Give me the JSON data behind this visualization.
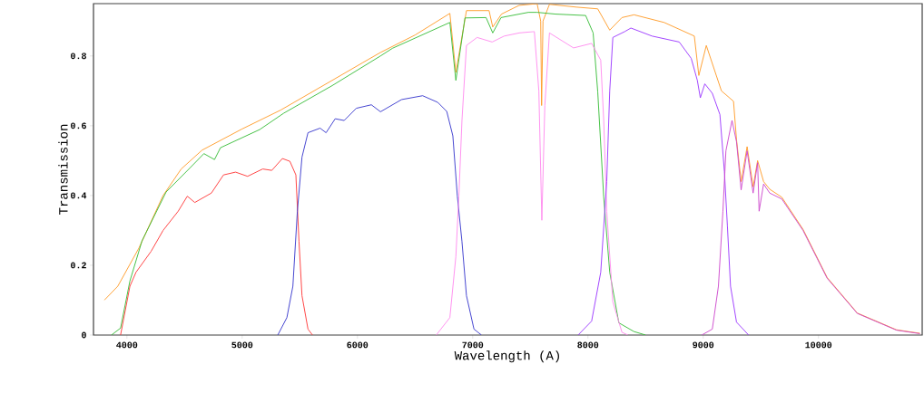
{
  "chart_data": {
    "type": "line",
    "xlabel": "Wavelength (A)",
    "ylabel": "Transmission",
    "xlim": [
      3710,
      10900
    ],
    "ylim": [
      0,
      0.95
    ],
    "xticks": [
      4000,
      5000,
      6000,
      7000,
      8000,
      9000,
      10000
    ],
    "yticks": [
      0,
      0.2,
      0.4,
      0.6,
      0.8
    ],
    "series": [
      {
        "color": "#ff9922",
        "x": [
          3804,
          3921,
          4105,
          4314,
          4471,
          4652,
          4995,
          5335,
          5781,
          6042,
          6200,
          6500,
          6802,
          6854,
          6946,
          7142,
          7174,
          7250,
          7403,
          7559,
          7590,
          7598,
          7610,
          7666,
          7900,
          8085,
          8189,
          8295,
          8400,
          8661,
          8923,
          8962,
          9027,
          9158,
          9263,
          9289,
          9329,
          9381,
          9433,
          9472,
          9524,
          9577,
          9682,
          9866,
          10075,
          10337,
          10677,
          10880
        ],
        "values": [
          0.1,
          0.14,
          0.25,
          0.4,
          0.476,
          0.53,
          0.59,
          0.645,
          0.73,
          0.78,
          0.81,
          0.86,
          0.922,
          0.753,
          0.93,
          0.93,
          0.883,
          0.92,
          0.945,
          0.95,
          0.9,
          0.658,
          0.9,
          0.948,
          0.94,
          0.935,
          0.874,
          0.91,
          0.918,
          0.896,
          0.857,
          0.744,
          0.83,
          0.7,
          0.67,
          0.56,
          0.44,
          0.54,
          0.425,
          0.5,
          0.44,
          0.418,
          0.395,
          0.303,
          0.165,
          0.063,
          0.015,
          0.005
        ]
      },
      {
        "color": "#33bb33",
        "x": [
          3866,
          3945,
          4026,
          4131,
          4340,
          4550,
          4668,
          4760,
          4812,
          5152,
          5361,
          5781,
          6200,
          6304,
          6802,
          6854,
          6933,
          7116,
          7174,
          7246,
          7483,
          7559,
          7718,
          7980,
          8045,
          8085,
          8137,
          8189,
          8268,
          8399,
          8500
        ],
        "values": [
          0,
          0.02,
          0.155,
          0.27,
          0.41,
          0.48,
          0.52,
          0.503,
          0.537,
          0.589,
          0.636,
          0.715,
          0.8,
          0.822,
          0.896,
          0.73,
          0.909,
          0.91,
          0.866,
          0.91,
          0.925,
          0.925,
          0.92,
          0.916,
          0.866,
          0.697,
          0.395,
          0.18,
          0.035,
          0.01,
          0
        ]
      },
      {
        "color": "#ff3333",
        "x": [
          3945,
          4026,
          4079,
          4210,
          4314,
          4445,
          4524,
          4589,
          4733,
          4838,
          4943,
          5047,
          5178,
          5257,
          5349,
          5414,
          5466,
          5493,
          5519,
          5571,
          5610
        ],
        "values": [
          0,
          0.14,
          0.18,
          0.24,
          0.3,
          0.355,
          0.398,
          0.38,
          0.407,
          0.459,
          0.467,
          0.455,
          0.476,
          0.472,
          0.506,
          0.498,
          0.459,
          0.268,
          0.113,
          0.017,
          0
        ]
      },
      {
        "color": "#3333cc",
        "x": [
          5309,
          5388,
          5440,
          5479,
          5519,
          5571,
          5676,
          5728,
          5807,
          5885,
          5990,
          6121,
          6200,
          6383,
          6566,
          6697,
          6775,
          6828,
          6867,
          6907,
          6946,
          7011,
          7076
        ],
        "values": [
          0,
          0.05,
          0.14,
          0.355,
          0.51,
          0.58,
          0.593,
          0.58,
          0.62,
          0.615,
          0.65,
          0.66,
          0.64,
          0.675,
          0.686,
          0.667,
          0.641,
          0.571,
          0.398,
          0.268,
          0.113,
          0.017,
          0
        ]
      },
      {
        "color": "#ff88ee",
        "x": [
          6684,
          6802,
          6854,
          6880,
          6907,
          6946,
          7038,
          7169,
          7273,
          7404,
          7535,
          7574,
          7600,
          7626,
          7666,
          7875,
          8032,
          8111,
          8137,
          8163,
          8216,
          8295,
          8347
        ],
        "values": [
          0,
          0.05,
          0.225,
          0.398,
          0.615,
          0.83,
          0.853,
          0.84,
          0.857,
          0.866,
          0.87,
          0.7,
          0.329,
          0.658,
          0.866,
          0.823,
          0.836,
          0.788,
          0.615,
          0.355,
          0.095,
          0.008,
          0
        ]
      },
      {
        "color": "#9933ff",
        "x": [
          7915,
          8032,
          8111,
          8163,
          8189,
          8216,
          8320,
          8373,
          8556,
          8792,
          8896,
          8949,
          8975,
          9014,
          9079,
          9145,
          9184,
          9210,
          9237,
          9289,
          9394
        ],
        "values": [
          0,
          0.04,
          0.18,
          0.44,
          0.7,
          0.853,
          0.87,
          0.88,
          0.857,
          0.84,
          0.793,
          0.73,
          0.68,
          0.72,
          0.693,
          0.632,
          0.468,
          0.312,
          0.14,
          0.037,
          0
        ]
      },
      {
        "color": "#cc44cc",
        "x": [
          8988,
          9079,
          9132,
          9171,
          9197,
          9250,
          9289,
          9329,
          9381,
          9433,
          9472,
          9485,
          9524,
          9577,
          9682,
          9866,
          10075,
          10337,
          10677,
          10880
        ],
        "values": [
          0,
          0.017,
          0.14,
          0.355,
          0.528,
          0.615,
          0.554,
          0.416,
          0.528,
          0.407,
          0.494,
          0.355,
          0.433,
          0.407,
          0.39,
          0.3,
          0.163,
          0.062,
          0.014,
          0.004
        ]
      }
    ]
  }
}
